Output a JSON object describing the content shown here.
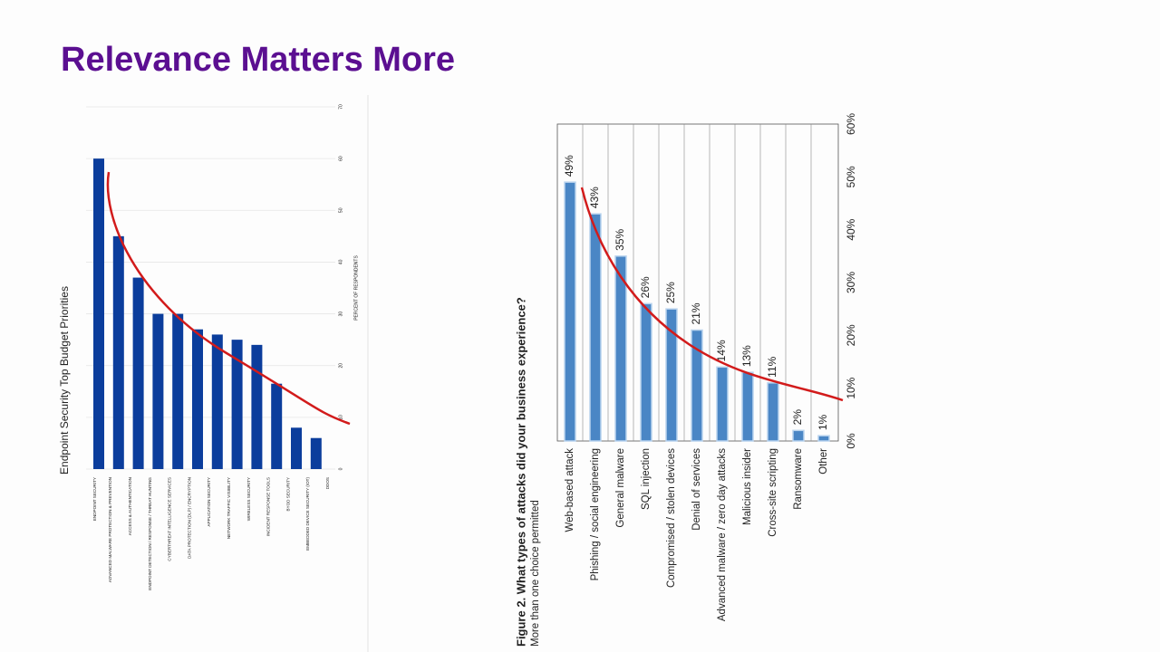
{
  "title": "Relevance Matters More",
  "chart_data": [
    {
      "type": "bar",
      "title": "Endpoint Security Top Budget Priorities",
      "y_label": "PERCENT OF RESPONDENTS",
      "category_header": "ENDPOINT SECURITY",
      "categories": [
        "ADVANCED MALWARE PROTECTION & PREVENTION",
        "ACCESS & AUTHENTICATION",
        "ENDPOINT DETECTION / RESPONSE / THREAT HUNTING",
        "CYBERTHREAT INTELLIGENCE SERVICES",
        "DATA PROTECTION (DLP) / ENCRYPTION",
        "APPLICATION SECURITY",
        "NETWORK TRAFFIC VISIBILITY",
        "WIRELESS SECURITY",
        "INCIDENT RESPONSE TOOLS",
        "BYOD SECURITY",
        "EMBEDDED DEVICE SECURITY (IOT)",
        "DDOS"
      ],
      "values": [
        60,
        45,
        37,
        30,
        30,
        27,
        26,
        25,
        24,
        16.5,
        8,
        6
      ],
      "color": "#0b3d9c",
      "ylim": [
        0,
        70
      ],
      "yticks": [
        0,
        10,
        20,
        30,
        40,
        50,
        60,
        70
      ],
      "grid": true
    },
    {
      "type": "bar",
      "title": "Figure 2. What types of attacks did your business experience?",
      "subtitle": "More than one choice permitted",
      "categories": [
        "Web-based attack",
        "Phishing / social engineering",
        "General malware",
        "SQL injection",
        "Compromised / stolen devices",
        "Denial of services",
        "Advanced malware / zero day attacks",
        "Malicious insider",
        "Cross-site scripting",
        "Ransomware",
        "Other"
      ],
      "values": [
        49,
        43,
        35,
        26,
        25,
        21,
        14,
        13,
        11,
        2,
        1
      ],
      "value_labels": [
        "49%",
        "43%",
        "35%",
        "26%",
        "25%",
        "21%",
        "14%",
        "13%",
        "11%",
        "2%",
        "1%"
      ],
      "color": "#4a86c5",
      "ylim": [
        0,
        60
      ],
      "yticks": [
        {
          "value": 0,
          "label": "0%"
        },
        {
          "value": 10,
          "label": "10%"
        },
        {
          "value": 20,
          "label": "20%"
        },
        {
          "value": 30,
          "label": "30%"
        },
        {
          "value": 40,
          "label": "40%"
        },
        {
          "value": 50,
          "label": "50%"
        },
        {
          "value": 60,
          "label": "60%"
        }
      ],
      "grid": true
    }
  ]
}
